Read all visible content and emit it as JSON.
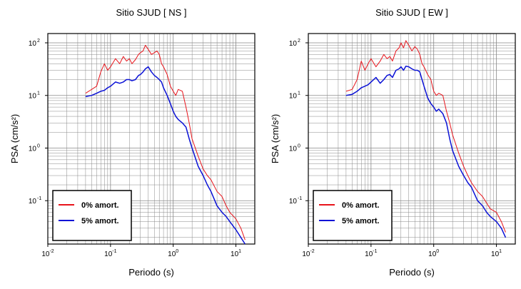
{
  "chart_data": [
    {
      "type": "line",
      "title": "Sitio SJUD [ NS ]",
      "xlabel": "Periodo (s)",
      "ylabel": "PSA (cm/s²)",
      "xscale": "log",
      "yscale": "log",
      "xlim": [
        0.01,
        20
      ],
      "ylim": [
        0.015,
        150
      ],
      "grid": true,
      "legend_position": "bottom-left",
      "x_ticks": [
        {
          "base": "10",
          "exp": "-2"
        },
        {
          "base": "10",
          "exp": "-1"
        },
        {
          "base": "10",
          "exp": "0"
        },
        {
          "base": "10",
          "exp": "1"
        }
      ],
      "y_ticks": [
        {
          "base": "10",
          "exp": "-1"
        },
        {
          "base": "10",
          "exp": "0"
        },
        {
          "base": "10",
          "exp": "1"
        },
        {
          "base": "10",
          "exp": "2"
        }
      ],
      "x": [
        0.04,
        0.05,
        0.06,
        0.07,
        0.08,
        0.09,
        0.1,
        0.12,
        0.14,
        0.16,
        0.18,
        0.2,
        0.22,
        0.25,
        0.28,
        0.3,
        0.33,
        0.36,
        0.4,
        0.45,
        0.5,
        0.55,
        0.6,
        0.65,
        0.7,
        0.8,
        0.9,
        1.0,
        1.1,
        1.2,
        1.4,
        1.6,
        1.8,
        2.0,
        2.5,
        3.0,
        3.5,
        4.0,
        5.0,
        6.0,
        7.0,
        8.0,
        10,
        12,
        14
      ],
      "series": [
        {
          "name": "0% amort.",
          "color": "#e8141b",
          "values": [
            11,
            13,
            15,
            28,
            40,
            30,
            35,
            50,
            40,
            55,
            45,
            50,
            40,
            48,
            60,
            65,
            70,
            90,
            75,
            60,
            65,
            70,
            60,
            40,
            35,
            25,
            15,
            12,
            10,
            13,
            12,
            6,
            3,
            1.5,
            0.7,
            0.4,
            0.3,
            0.25,
            0.15,
            0.12,
            0.08,
            0.06,
            0.045,
            0.03,
            0.018
          ]
        },
        {
          "name": "5% amort.",
          "color": "#0b12d6",
          "values": [
            9.5,
            10,
            11,
            12,
            12.5,
            14,
            15,
            18,
            17,
            18,
            20,
            20,
            19,
            20,
            24,
            25,
            28,
            32,
            35,
            28,
            24,
            22,
            20,
            18,
            14,
            10,
            7,
            5,
            4,
            3.5,
            3,
            2.5,
            1.5,
            1,
            0.45,
            0.3,
            0.2,
            0.15,
            0.08,
            0.06,
            0.05,
            0.04,
            0.028,
            0.02,
            0.015
          ]
        }
      ]
    },
    {
      "type": "line",
      "title": "Sitio SJUD [ EW ]",
      "xlabel": "Periodo (s)",
      "ylabel": "PSA (cm/s²)",
      "xscale": "log",
      "yscale": "log",
      "xlim": [
        0.01,
        20
      ],
      "ylim": [
        0.015,
        150
      ],
      "grid": true,
      "legend_position": "bottom-left",
      "x_ticks": [
        {
          "base": "10",
          "exp": "-2"
        },
        {
          "base": "10",
          "exp": "-1"
        },
        {
          "base": "10",
          "exp": "0"
        },
        {
          "base": "10",
          "exp": "1"
        }
      ],
      "y_ticks": [
        {
          "base": "10",
          "exp": "-1"
        },
        {
          "base": "10",
          "exp": "0"
        },
        {
          "base": "10",
          "exp": "1"
        },
        {
          "base": "10",
          "exp": "2"
        }
      ],
      "x": [
        0.04,
        0.05,
        0.06,
        0.07,
        0.08,
        0.09,
        0.1,
        0.12,
        0.14,
        0.16,
        0.18,
        0.2,
        0.22,
        0.25,
        0.28,
        0.3,
        0.33,
        0.36,
        0.4,
        0.45,
        0.5,
        0.55,
        0.6,
        0.65,
        0.7,
        0.8,
        0.9,
        1.0,
        1.1,
        1.2,
        1.4,
        1.6,
        1.8,
        2.0,
        2.5,
        3.0,
        3.5,
        4.0,
        5.0,
        6.0,
        7.0,
        8.0,
        10,
        12,
        14
      ],
      "series": [
        {
          "name": "0% amort.",
          "color": "#e8141b",
          "values": [
            12,
            13,
            20,
            45,
            30,
            40,
            50,
            35,
            45,
            60,
            50,
            55,
            45,
            70,
            80,
            100,
            80,
            110,
            90,
            70,
            85,
            75,
            60,
            40,
            35,
            25,
            20,
            12,
            10,
            11,
            10,
            5,
            3,
            1.8,
            0.8,
            0.45,
            0.3,
            0.22,
            0.15,
            0.12,
            0.09,
            0.07,
            0.06,
            0.04,
            0.025
          ]
        },
        {
          "name": "5% amort.",
          "color": "#0b12d6",
          "values": [
            10,
            10.5,
            12,
            14,
            15,
            16,
            18,
            22,
            17,
            20,
            24,
            25,
            22,
            30,
            32,
            35,
            30,
            36,
            35,
            32,
            30,
            30,
            28,
            20,
            15,
            9,
            7,
            6,
            5,
            5.5,
            4.5,
            3,
            1.5,
            0.9,
            0.45,
            0.3,
            0.22,
            0.18,
            0.1,
            0.08,
            0.06,
            0.05,
            0.04,
            0.03,
            0.02
          ]
        }
      ]
    }
  ]
}
